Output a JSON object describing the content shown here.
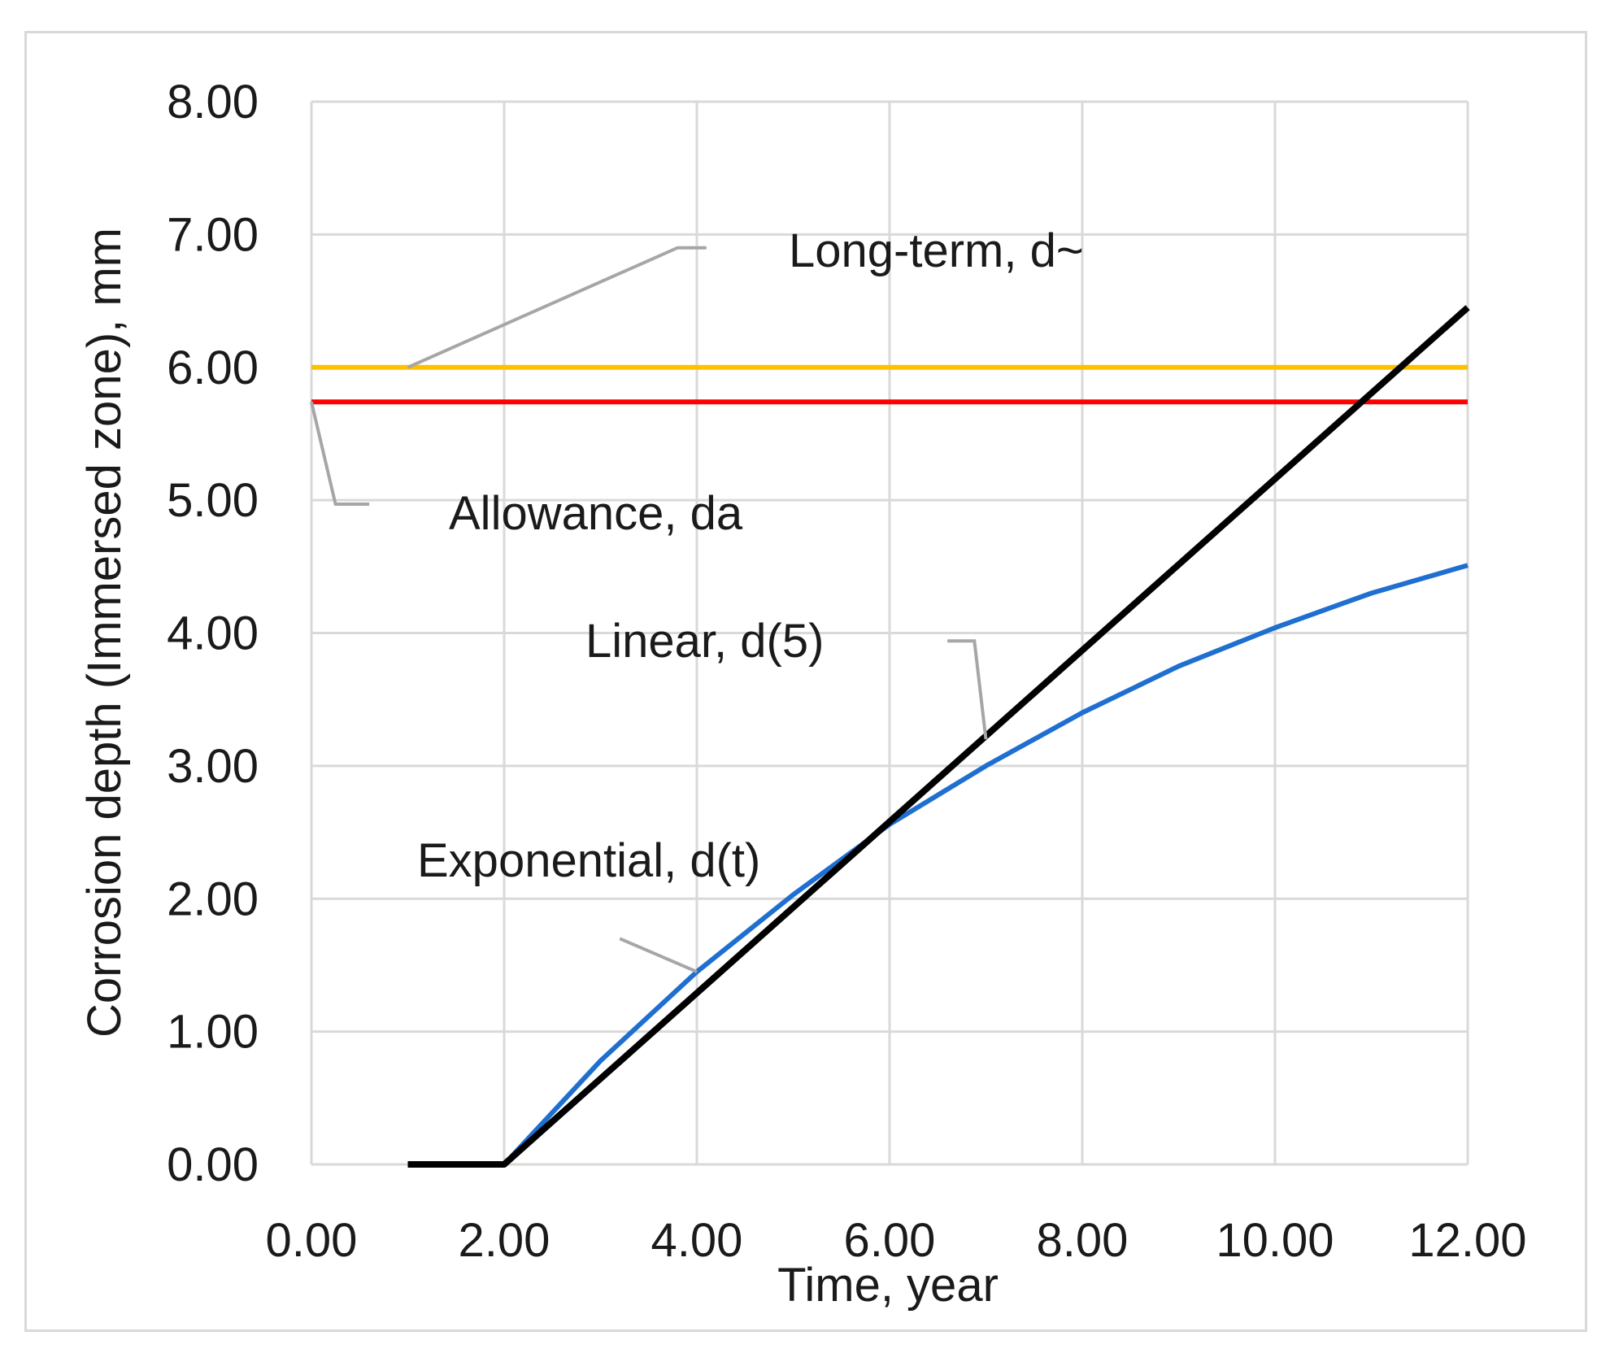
{
  "chart_data": {
    "type": "line",
    "title": "",
    "xlabel": "Time, year",
    "ylabel": "Corrosion depth (Immersed zone), mm",
    "xlim": [
      0,
      12
    ],
    "ylim": [
      0,
      8
    ],
    "x_ticks": [
      "0.00",
      "2.00",
      "4.00",
      "6.00",
      "8.00",
      "10.00",
      "12.00"
    ],
    "y_ticks": [
      "0.00",
      "1.00",
      "2.00",
      "3.00",
      "4.00",
      "5.00",
      "6.00",
      "7.00",
      "8.00"
    ],
    "grid": true,
    "series": [
      {
        "name": "Exponential, d(t)",
        "color": "#1f6fd1",
        "x": [
          1,
          2,
          3,
          4,
          5,
          6,
          7,
          8,
          9,
          10,
          11,
          12
        ],
        "y": [
          0,
          0,
          0.78,
          1.45,
          2.03,
          2.56,
          3.0,
          3.4,
          3.75,
          4.04,
          4.3,
          4.51
        ]
      },
      {
        "name": "Linear, d(5)",
        "color": "#000000",
        "x": [
          1,
          2,
          12
        ],
        "y": [
          0,
          0,
          6.45
        ]
      },
      {
        "name": "Long-term, d~",
        "color": "#ffc000",
        "x": [
          0,
          12
        ],
        "y": [
          6.0,
          6.0
        ]
      },
      {
        "name": "Allowance, da",
        "color": "#ff0000",
        "x": [
          0,
          12
        ],
        "y": [
          5.74,
          5.74
        ]
      }
    ],
    "annotations": [
      {
        "text": "Long-term, d~",
        "leader": [
          [
            1,
            6.0
          ],
          [
            3.8,
            6.9
          ],
          [
            4.1,
            6.9
          ]
        ]
      },
      {
        "text": "Allowance, da",
        "leader": [
          [
            0,
            5.74
          ],
          [
            0.25,
            4.97
          ],
          [
            0.6,
            4.97
          ]
        ]
      },
      {
        "text": "Linear, d(5)",
        "leader": [
          [
            7.0,
            3.2
          ],
          [
            6.88,
            3.94
          ],
          [
            6.6,
            3.94
          ]
        ]
      },
      {
        "text": "Exponential, d(t)",
        "leader": [
          [
            4.0,
            1.45
          ],
          [
            3.2,
            1.7
          ]
        ]
      }
    ]
  }
}
